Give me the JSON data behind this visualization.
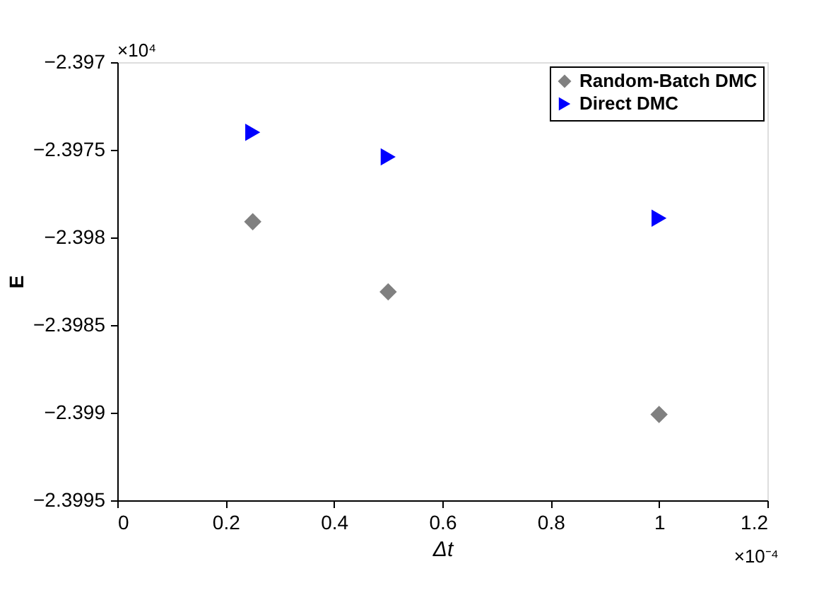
{
  "chart_data": {
    "type": "scatter",
    "xlabel": "Δt",
    "ylabel": "E",
    "series": [
      {
        "name": "Random-Batch DMC",
        "color": "#808080",
        "marker": "diamond",
        "x": [
          0.25,
          0.5,
          1.0
        ],
        "values": [
          -2.39791,
          -2.39831,
          -2.39901
        ]
      },
      {
        "name": "Direct DMC",
        "color": "#0000ff",
        "marker": "triangle",
        "x": [
          0.25,
          0.5,
          1.0
        ],
        "values": [
          -2.3974,
          -2.39754,
          -2.39789
        ]
      }
    ],
    "xlim": [
      0,
      1.2
    ],
    "xticks": [
      0,
      0.2,
      0.4,
      0.6,
      0.8,
      1,
      1.2
    ],
    "ylim": [
      -2.3995,
      -2.397
    ],
    "yticks": [
      -2.3995,
      -2.399,
      -2.3985,
      -2.398,
      -2.3975,
      -2.397
    ],
    "annotations": [
      "×10⁴",
      "×10⁻⁴"
    ],
    "grid": false,
    "legend": "top right"
  }
}
